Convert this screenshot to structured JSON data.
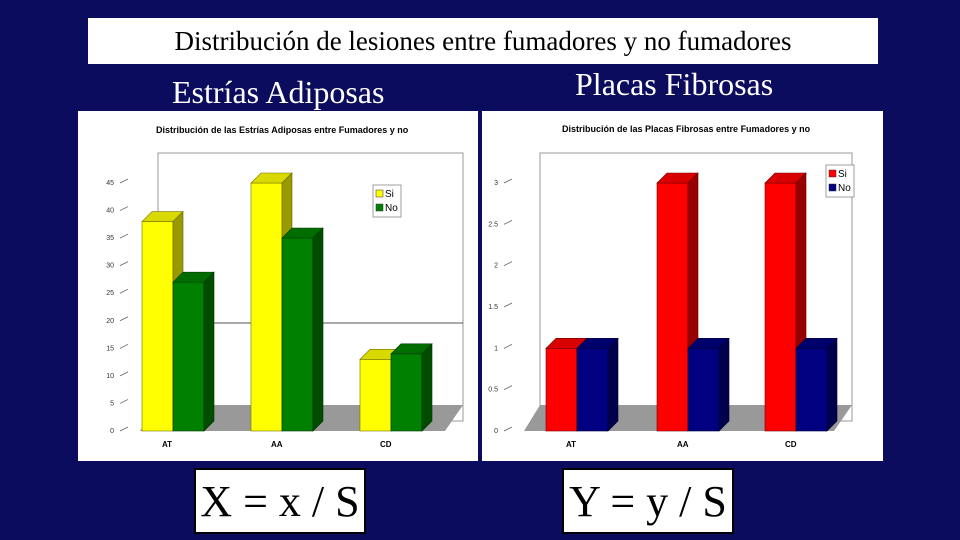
{
  "slide": {
    "title": "Distribución de lesiones entre fumadores y no fumadores",
    "left_heading": "Estrías Adiposas",
    "right_heading": "Placas Fibrosas",
    "left_formula": "X = x / S",
    "right_formula": "Y = y / S"
  },
  "chart_data": [
    {
      "type": "bar",
      "title": "Distribución de las Estrías Adiposas entre Fumadores y no",
      "categories": [
        "AT",
        "AA",
        "CD"
      ],
      "series": [
        {
          "name": "Si",
          "color": "#ffff00",
          "values": [
            38,
            45,
            13
          ]
        },
        {
          "name": "No",
          "color": "#008000",
          "values": [
            27,
            35,
            14
          ]
        }
      ],
      "ylim": [
        0,
        45
      ],
      "yticks": [
        0,
        5,
        10,
        15,
        20,
        25,
        30,
        35,
        40,
        45
      ],
      "legend": "top-right"
    },
    {
      "type": "bar",
      "title": "Distribución de las Placas Fibrosas entre Fumadores y no",
      "categories": [
        "AT",
        "AA",
        "CD"
      ],
      "series": [
        {
          "name": "Si",
          "color": "#ff0000",
          "values": [
            1,
            3,
            3
          ]
        },
        {
          "name": "No",
          "color": "#000080",
          "values": [
            1,
            1,
            1
          ]
        }
      ],
      "ylim": [
        0,
        3
      ],
      "yticks": [
        0,
        0.5,
        1,
        1.5,
        2,
        2.5,
        3
      ],
      "legend": "top-right"
    }
  ]
}
